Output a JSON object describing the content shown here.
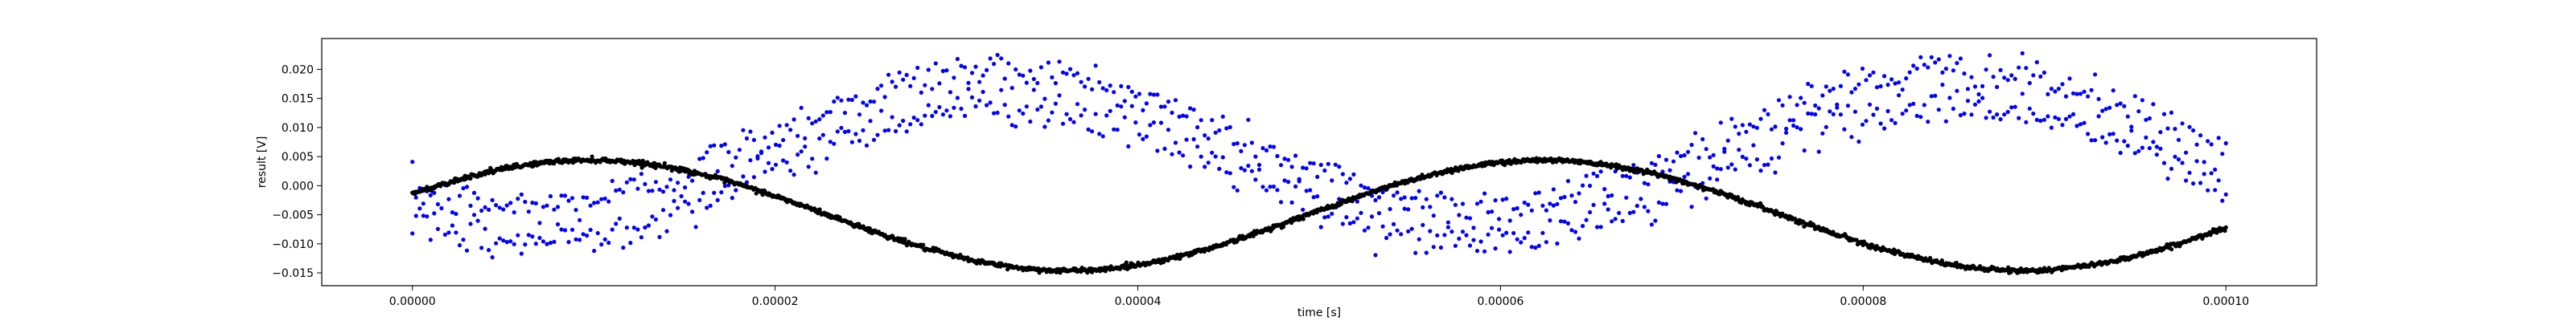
{
  "chart_data": {
    "type": "scatter",
    "title": "",
    "xlabel": "time [s]",
    "ylabel": "result [V]",
    "xlim": [
      -5e-06,
      0.000105
    ],
    "ylim": [
      -0.0172,
      0.0253
    ],
    "grid": false,
    "legend": "none",
    "xticks": [
      0,
      2e-05,
      4e-05,
      6e-05,
      8e-05,
      0.0001
    ],
    "xtick_labels": [
      "0.00000",
      "0.00002",
      "0.00004",
      "0.00006",
      "0.00008",
      "0.00010"
    ],
    "yticks": [
      -0.015,
      -0.01,
      -0.005,
      0.0,
      0.005,
      0.01,
      0.015,
      0.02
    ],
    "ytick_labels": [
      "−0.015",
      "−0.010",
      "−0.005",
      "0.000",
      "0.005",
      "0.010",
      "0.015",
      "0.020"
    ],
    "series": [
      {
        "color": "#0000ff",
        "marker": "dot",
        "points_per_branch": 500,
        "x_range": [
          0,
          0.0001
        ],
        "model": "offset + amplitude*sin(2*pi*frequency*t + phase) ± branch_split",
        "offset": 0.0051,
        "amplitude": 0.0117,
        "frequency": 19000,
        "phase": -2.3,
        "branch_split": 0.003,
        "noise_std": 0.0017
      },
      {
        "color": "#000000",
        "marker": "dot",
        "points": 2000,
        "x_range": [
          0,
          0.0001
        ],
        "model": "offset + amplitude*sin(2*pi*frequency*t + phase)",
        "offset": -0.0051,
        "amplitude": 0.0095,
        "frequency": 19000,
        "phase": 0.4,
        "noise_std": 0.0002
      }
    ]
  }
}
